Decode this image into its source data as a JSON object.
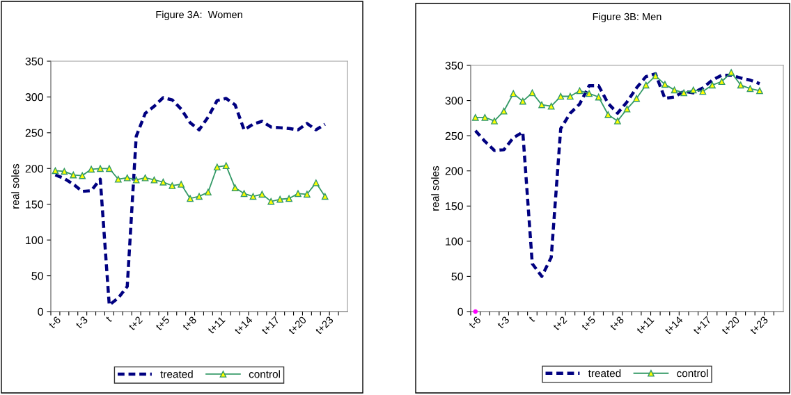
{
  "chart_data": [
    {
      "type": "line",
      "title": "Figure 3A:  Women",
      "ylabel": "real soles",
      "categories": [
        "t-6",
        null,
        null,
        "t-3",
        null,
        null,
        "t",
        null,
        null,
        "t+2",
        null,
        null,
        "t+5",
        null,
        null,
        "t+8",
        null,
        null,
        "t+11",
        null,
        null,
        "t+14",
        null,
        null,
        "t+17",
        null,
        null,
        "t+20",
        null,
        null,
        "t+23",
        null,
        null
      ],
      "series": [
        {
          "name": "treated",
          "color": "#000080",
          "line_style": "dashed",
          "marker": "none",
          "values": [
            191,
            186,
            178,
            168,
            169,
            185,
            9,
            19,
            35,
            245,
            277,
            287,
            299,
            296,
            283,
            264,
            254,
            272,
            295,
            298,
            289,
            254,
            262,
            266,
            258,
            257,
            256,
            254,
            263,
            254,
            262,
            null,
            null
          ]
        },
        {
          "name": "control",
          "color": "#339966",
          "line_style": "solid",
          "marker": "triangle",
          "values": [
            197,
            196,
            191,
            190,
            199,
            200,
            200,
            185,
            187,
            184,
            187,
            184,
            181,
            176,
            178,
            158,
            161,
            167,
            202,
            204,
            173,
            165,
            161,
            164,
            154,
            157,
            158,
            165,
            164,
            180,
            161,
            null,
            null
          ]
        }
      ],
      "ylim": [
        0,
        350
      ],
      "yticks": [
        0,
        50,
        100,
        150,
        200,
        250,
        300,
        350
      ],
      "grid": false,
      "legend": "bottom"
    },
    {
      "type": "line",
      "title": "Figure 3B: Men",
      "ylabel": "real soles",
      "categories": [
        "t-6",
        null,
        null,
        "t-3",
        null,
        null,
        "t",
        null,
        null,
        "t+2",
        null,
        null,
        "t+5",
        null,
        null,
        "t+8",
        null,
        null,
        "t+11",
        null,
        null,
        "t+14",
        null,
        null,
        "t+17",
        null,
        null,
        "t+20",
        null,
        null,
        "t+23",
        null,
        null
      ],
      "series": [
        {
          "name": "treated",
          "color": "#000080",
          "line_style": "dashed",
          "marker": "none",
          "values": [
            257,
            242,
            229,
            230,
            247,
            255,
            68,
            50,
            77,
            260,
            282,
            295,
            321,
            321,
            296,
            282,
            298,
            318,
            334,
            338,
            303,
            305,
            313,
            311,
            318,
            329,
            336,
            336,
            332,
            329,
            324,
            null,
            null
          ]
        },
        {
          "name": "control",
          "color": "#339966",
          "line_style": "solid",
          "marker": "triangle",
          "values": [
            276,
            276,
            271,
            285,
            310,
            299,
            311,
            294,
            292,
            306,
            306,
            314,
            310,
            305,
            280,
            271,
            288,
            303,
            322,
            335,
            323,
            315,
            311,
            315,
            313,
            322,
            327,
            340,
            322,
            317,
            314,
            null,
            null
          ]
        },
        {
          "type": "scatter",
          "color": "#ff00ff",
          "marker": "circle",
          "values": [
            0,
            null,
            null,
            null,
            null,
            null,
            null,
            null,
            null,
            null,
            null,
            null,
            null,
            null,
            null,
            null,
            null,
            null,
            null,
            null,
            null,
            null,
            null,
            null,
            null,
            null,
            null,
            null,
            null,
            null,
            null,
            null,
            null
          ]
        }
      ],
      "ylim": [
        0,
        350
      ],
      "yticks": [
        0,
        50,
        100,
        150,
        200,
        250,
        300,
        350
      ],
      "grid": false,
      "legend": "bottom"
    }
  ]
}
